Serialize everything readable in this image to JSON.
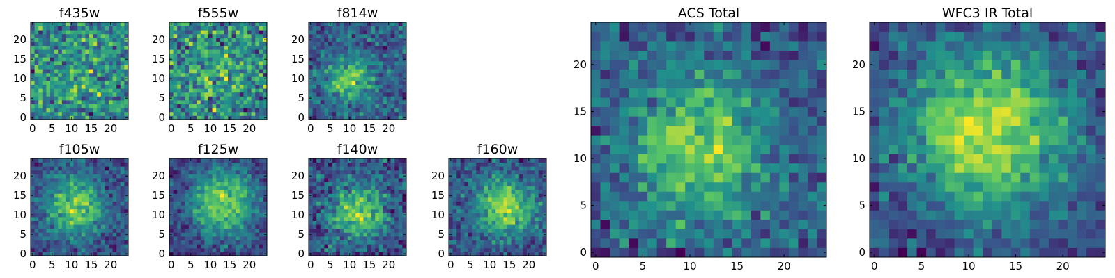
{
  "palette": [
    "#440154",
    "#3b528b",
    "#21918c",
    "#5ec962",
    "#fde725"
  ],
  "chart_data": [
    {
      "type": "heatmap",
      "title": "f435w",
      "shape": [
        25,
        25
      ],
      "xticks": [
        "0",
        "5",
        "10",
        "15",
        "20"
      ],
      "yticks": [
        "0",
        "5",
        "10",
        "15",
        "20"
      ],
      "xlim": [
        -0.5,
        24.5
      ],
      "ylim": [
        -0.5,
        24.5
      ],
      "colormap": "viridis",
      "grid": false,
      "seed": 11,
      "blob": {
        "cx": 12,
        "cy": 12,
        "sigma": 7,
        "amp": 0.1
      },
      "noise": 0.85
    },
    {
      "type": "heatmap",
      "title": "f555w",
      "shape": [
        25,
        25
      ],
      "xticks": [
        "0",
        "5",
        "10",
        "15",
        "20"
      ],
      "yticks": [
        "0",
        "5",
        "10",
        "15",
        "20"
      ],
      "xlim": [
        -0.5,
        24.5
      ],
      "ylim": [
        -0.5,
        24.5
      ],
      "colormap": "viridis",
      "grid": false,
      "seed": 23,
      "blob": {
        "cx": 12,
        "cy": 12,
        "sigma": 7,
        "amp": 0.12
      },
      "noise": 0.85
    },
    {
      "type": "heatmap",
      "title": "f814w",
      "shape": [
        25,
        25
      ],
      "xticks": [
        "0",
        "5",
        "10",
        "15",
        "20"
      ],
      "yticks": [
        "0",
        "5",
        "10",
        "15",
        "20"
      ],
      "xlim": [
        -0.5,
        24.5
      ],
      "ylim": [
        -0.5,
        24.5
      ],
      "colormap": "viridis",
      "grid": false,
      "seed": 37,
      "blob": {
        "cx": 10,
        "cy": 10,
        "sigma": 4,
        "amp": 0.45
      },
      "noise": 0.7
    },
    {
      "type": "heatmap",
      "title": "f105w",
      "shape": [
        25,
        25
      ],
      "xticks": [
        "0",
        "5",
        "10",
        "15",
        "20"
      ],
      "yticks": [
        "0",
        "5",
        "10",
        "15",
        "20"
      ],
      "xlim": [
        -0.5,
        24.5
      ],
      "ylim": [
        -0.5,
        24.5
      ],
      "colormap": "viridis",
      "grid": false,
      "seed": 41,
      "blob": {
        "cx": 11,
        "cy": 12,
        "sigma": 5,
        "amp": 0.5
      },
      "noise": 0.55
    },
    {
      "type": "heatmap",
      "title": "f125w",
      "shape": [
        25,
        25
      ],
      "xticks": [
        "0",
        "5",
        "10",
        "15",
        "20"
      ],
      "yticks": [
        "0",
        "5",
        "10",
        "15",
        "20"
      ],
      "xlim": [
        -0.5,
        24.5
      ],
      "ylim": [
        -0.5,
        24.5
      ],
      "colormap": "viridis",
      "grid": false,
      "seed": 53,
      "blob": {
        "cx": 13,
        "cy": 13,
        "sigma": 6,
        "amp": 0.55
      },
      "noise": 0.5
    },
    {
      "type": "heatmap",
      "title": "f140w",
      "shape": [
        25,
        25
      ],
      "xticks": [
        "0",
        "5",
        "10",
        "15",
        "20"
      ],
      "yticks": [
        "0",
        "5",
        "10",
        "15",
        "20"
      ],
      "xlim": [
        -0.5,
        24.5
      ],
      "ylim": [
        -0.5,
        24.5
      ],
      "colormap": "viridis",
      "grid": false,
      "seed": 67,
      "blob": {
        "cx": 12,
        "cy": 11,
        "sigma": 5,
        "amp": 0.45
      },
      "noise": 0.6
    },
    {
      "type": "heatmap",
      "title": "f160w",
      "shape": [
        25,
        25
      ],
      "xticks": [
        "0",
        "5",
        "10",
        "15",
        "20"
      ],
      "yticks": [
        "0",
        "5",
        "10",
        "15",
        "20"
      ],
      "xlim": [
        -0.5,
        24.5
      ],
      "ylim": [
        -0.5,
        24.5
      ],
      "colormap": "viridis",
      "grid": false,
      "seed": 79,
      "blob": {
        "cx": 14,
        "cy": 12,
        "sigma": 5,
        "amp": 0.5
      },
      "noise": 0.55
    },
    {
      "type": "heatmap",
      "title": "ACS Total",
      "shape": [
        25,
        25
      ],
      "xticks": [
        "0",
        "5",
        "10",
        "15",
        "20"
      ],
      "yticks": [
        "0",
        "5",
        "10",
        "15",
        "20"
      ],
      "xlim": [
        -0.5,
        24.5
      ],
      "ylim": [
        -0.5,
        24.5
      ],
      "colormap": "viridis",
      "grid": false,
      "seed": 97,
      "blob": {
        "cx": 11,
        "cy": 11,
        "sigma": 5,
        "amp": 0.45
      },
      "noise": 0.6
    },
    {
      "type": "heatmap",
      "title": "WFC3 IR Total",
      "shape": [
        25,
        25
      ],
      "xticks": [
        "0",
        "5",
        "10",
        "15",
        "20"
      ],
      "yticks": [
        "0",
        "5",
        "10",
        "15",
        "20"
      ],
      "xlim": [
        -0.5,
        24.5
      ],
      "ylim": [
        -0.5,
        24.5
      ],
      "colormap": "viridis",
      "grid": false,
      "seed": 113,
      "blob": {
        "cx": 12,
        "cy": 13,
        "sigma": 6,
        "amp": 0.55
      },
      "noise": 0.45
    }
  ]
}
